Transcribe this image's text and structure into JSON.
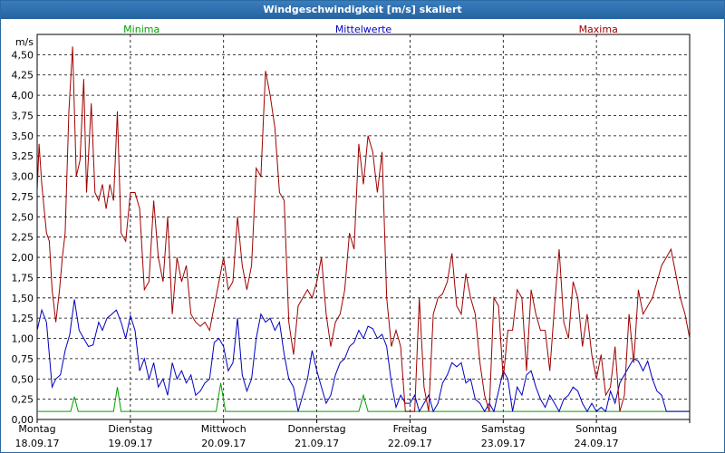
{
  "window": {
    "title": "Windgeschwindigkeit [m/s] skaliert"
  },
  "chart_data": {
    "type": "line",
    "title": "Windgeschwindigkeit [m/s] skaliert",
    "ylabel": "m/s",
    "ylim": [
      0,
      4.75
    ],
    "yticks": [
      "0,00",
      "0,25",
      "0,50",
      "0,75",
      "1,00",
      "1,25",
      "1,50",
      "1,75",
      "2,00",
      "2,25",
      "2,50",
      "2,75",
      "3,00",
      "3,25",
      "3,50",
      "3,75",
      "4,00",
      "4,25",
      "4,50"
    ],
    "day_labels": [
      {
        "day": "Montag",
        "date": "18.09.17"
      },
      {
        "day": "Dienstag",
        "date": "19.09.17"
      },
      {
        "day": "Mittwoch",
        "date": "20.09.17"
      },
      {
        "day": "Donnerstag",
        "date": "21.09.17"
      },
      {
        "day": "Freitag",
        "date": "22.09.17"
      },
      {
        "day": "Samstag",
        "date": "23.09.17"
      },
      {
        "day": "Sonntag",
        "date": "24.09.17"
      }
    ],
    "x_days": 7,
    "grid": true,
    "series": [
      {
        "name": "Minima",
        "color": "#00a000",
        "points": [
          [
            0,
            0.1
          ],
          [
            0.36,
            0.1
          ],
          [
            0.4,
            0.28
          ],
          [
            0.44,
            0.1
          ],
          [
            0.82,
            0.1
          ],
          [
            0.86,
            0.4
          ],
          [
            0.9,
            0.1
          ],
          [
            1.92,
            0.1
          ],
          [
            1.97,
            0.45
          ],
          [
            2.02,
            0.1
          ],
          [
            3.45,
            0.1
          ],
          [
            3.5,
            0.3
          ],
          [
            3.55,
            0.1
          ],
          [
            7,
            0.1
          ]
        ]
      },
      {
        "name": "Mittelwerte",
        "color": "#0000c0",
        "points": [
          [
            0,
            1.1
          ],
          [
            0.05,
            1.35
          ],
          [
            0.1,
            1.2
          ],
          [
            0.16,
            0.4
          ],
          [
            0.2,
            0.5
          ],
          [
            0.25,
            0.55
          ],
          [
            0.3,
            0.85
          ],
          [
            0.35,
            1.05
          ],
          [
            0.4,
            1.48
          ],
          [
            0.45,
            1.1
          ],
          [
            0.5,
            1.0
          ],
          [
            0.55,
            0.9
          ],
          [
            0.6,
            0.92
          ],
          [
            0.66,
            1.2
          ],
          [
            0.7,
            1.1
          ],
          [
            0.75,
            1.25
          ],
          [
            0.8,
            1.3
          ],
          [
            0.85,
            1.35
          ],
          [
            0.9,
            1.2
          ],
          [
            0.95,
            1.0
          ],
          [
            1.0,
            1.28
          ],
          [
            1.05,
            1.1
          ],
          [
            1.1,
            0.6
          ],
          [
            1.15,
            0.75
          ],
          [
            1.2,
            0.5
          ],
          [
            1.25,
            0.7
          ],
          [
            1.3,
            0.4
          ],
          [
            1.35,
            0.5
          ],
          [
            1.4,
            0.3
          ],
          [
            1.45,
            0.7
          ],
          [
            1.5,
            0.5
          ],
          [
            1.55,
            0.6
          ],
          [
            1.6,
            0.45
          ],
          [
            1.65,
            0.55
          ],
          [
            1.7,
            0.3
          ],
          [
            1.75,
            0.35
          ],
          [
            1.8,
            0.45
          ],
          [
            1.85,
            0.5
          ],
          [
            1.9,
            0.95
          ],
          [
            1.95,
            1.0
          ],
          [
            2.0,
            0.9
          ],
          [
            2.05,
            0.6
          ],
          [
            2.1,
            0.7
          ],
          [
            2.15,
            1.25
          ],
          [
            2.2,
            0.55
          ],
          [
            2.25,
            0.35
          ],
          [
            2.3,
            0.5
          ],
          [
            2.35,
            1.0
          ],
          [
            2.4,
            1.3
          ],
          [
            2.45,
            1.2
          ],
          [
            2.5,
            1.25
          ],
          [
            2.55,
            1.1
          ],
          [
            2.6,
            1.2
          ],
          [
            2.65,
            0.8
          ],
          [
            2.7,
            0.5
          ],
          [
            2.75,
            0.4
          ],
          [
            2.8,
            0.1
          ],
          [
            2.85,
            0.3
          ],
          [
            2.9,
            0.5
          ],
          [
            2.95,
            0.85
          ],
          [
            3.0,
            0.6
          ],
          [
            3.05,
            0.4
          ],
          [
            3.1,
            0.2
          ],
          [
            3.15,
            0.3
          ],
          [
            3.2,
            0.55
          ],
          [
            3.25,
            0.7
          ],
          [
            3.3,
            0.75
          ],
          [
            3.35,
            0.9
          ],
          [
            3.4,
            0.95
          ],
          [
            3.45,
            1.1
          ],
          [
            3.5,
            1.0
          ],
          [
            3.55,
            1.15
          ],
          [
            3.6,
            1.12
          ],
          [
            3.65,
            1.0
          ],
          [
            3.7,
            1.05
          ],
          [
            3.75,
            0.9
          ],
          [
            3.8,
            0.45
          ],
          [
            3.85,
            0.15
          ],
          [
            3.9,
            0.3
          ],
          [
            3.95,
            0.2
          ],
          [
            4.0,
            0.2
          ],
          [
            4.05,
            0.3
          ],
          [
            4.1,
            0.1
          ],
          [
            4.15,
            0.2
          ],
          [
            4.2,
            0.3
          ],
          [
            4.25,
            0.1
          ],
          [
            4.3,
            0.2
          ],
          [
            4.35,
            0.45
          ],
          [
            4.4,
            0.55
          ],
          [
            4.45,
            0.7
          ],
          [
            4.5,
            0.65
          ],
          [
            4.55,
            0.7
          ],
          [
            4.6,
            0.45
          ],
          [
            4.65,
            0.5
          ],
          [
            4.7,
            0.25
          ],
          [
            4.75,
            0.2
          ],
          [
            4.8,
            0.1
          ],
          [
            4.85,
            0.2
          ],
          [
            4.9,
            0.1
          ],
          [
            5.0,
            0.6
          ],
          [
            5.05,
            0.5
          ],
          [
            5.1,
            0.1
          ],
          [
            5.15,
            0.4
          ],
          [
            5.2,
            0.3
          ],
          [
            5.25,
            0.55
          ],
          [
            5.3,
            0.6
          ],
          [
            5.35,
            0.4
          ],
          [
            5.4,
            0.25
          ],
          [
            5.45,
            0.15
          ],
          [
            5.5,
            0.3
          ],
          [
            5.55,
            0.2
          ],
          [
            5.6,
            0.1
          ],
          [
            5.65,
            0.25
          ],
          [
            5.7,
            0.3
          ],
          [
            5.75,
            0.4
          ],
          [
            5.8,
            0.35
          ],
          [
            5.85,
            0.2
          ],
          [
            5.9,
            0.1
          ],
          [
            5.95,
            0.2
          ],
          [
            6.0,
            0.1
          ],
          [
            6.05,
            0.15
          ],
          [
            6.1,
            0.1
          ],
          [
            6.15,
            0.35
          ],
          [
            6.2,
            0.2
          ],
          [
            6.25,
            0.45
          ],
          [
            6.3,
            0.55
          ],
          [
            6.35,
            0.65
          ],
          [
            6.4,
            0.75
          ],
          [
            6.45,
            0.72
          ],
          [
            6.5,
            0.6
          ],
          [
            6.55,
            0.72
          ],
          [
            6.6,
            0.5
          ],
          [
            6.65,
            0.35
          ],
          [
            6.7,
            0.3
          ],
          [
            6.75,
            0.1
          ],
          [
            7,
            0.1
          ]
        ]
      },
      {
        "name": "Maxima",
        "color": "#a00000",
        "points": [
          [
            0,
            2.8
          ],
          [
            0.02,
            3.4
          ],
          [
            0.05,
            2.9
          ],
          [
            0.1,
            2.3
          ],
          [
            0.13,
            2.2
          ],
          [
            0.16,
            1.6
          ],
          [
            0.2,
            1.2
          ],
          [
            0.24,
            1.6
          ],
          [
            0.27,
            2.0
          ],
          [
            0.3,
            2.3
          ],
          [
            0.34,
            3.8
          ],
          [
            0.38,
            4.6
          ],
          [
            0.42,
            3.0
          ],
          [
            0.46,
            3.2
          ],
          [
            0.5,
            4.2
          ],
          [
            0.53,
            2.8
          ],
          [
            0.58,
            3.9
          ],
          [
            0.62,
            2.8
          ],
          [
            0.66,
            2.7
          ],
          [
            0.7,
            2.9
          ],
          [
            0.74,
            2.6
          ],
          [
            0.78,
            2.9
          ],
          [
            0.82,
            2.7
          ],
          [
            0.86,
            3.8
          ],
          [
            0.9,
            2.3
          ],
          [
            0.95,
            2.2
          ],
          [
            1.0,
            2.8
          ],
          [
            1.05,
            2.8
          ],
          [
            1.1,
            2.6
          ],
          [
            1.15,
            1.6
          ],
          [
            1.2,
            1.7
          ],
          [
            1.25,
            2.7
          ],
          [
            1.3,
            2.0
          ],
          [
            1.35,
            1.7
          ],
          [
            1.4,
            2.5
          ],
          [
            1.45,
            1.3
          ],
          [
            1.5,
            2.0
          ],
          [
            1.55,
            1.7
          ],
          [
            1.6,
            1.9
          ],
          [
            1.65,
            1.3
          ],
          [
            1.7,
            1.2
          ],
          [
            1.75,
            1.15
          ],
          [
            1.8,
            1.2
          ],
          [
            1.85,
            1.1
          ],
          [
            1.9,
            1.4
          ],
          [
            1.95,
            1.7
          ],
          [
            2.0,
            2.0
          ],
          [
            2.05,
            1.6
          ],
          [
            2.1,
            1.7
          ],
          [
            2.15,
            2.5
          ],
          [
            2.2,
            1.9
          ],
          [
            2.25,
            1.6
          ],
          [
            2.3,
            1.9
          ],
          [
            2.35,
            3.1
          ],
          [
            2.4,
            3.0
          ],
          [
            2.45,
            4.3
          ],
          [
            2.5,
            4.0
          ],
          [
            2.55,
            3.6
          ],
          [
            2.6,
            2.8
          ],
          [
            2.65,
            2.7
          ],
          [
            2.7,
            1.2
          ],
          [
            2.75,
            0.8
          ],
          [
            2.8,
            1.4
          ],
          [
            2.85,
            1.5
          ],
          [
            2.9,
            1.6
          ],
          [
            2.95,
            1.5
          ],
          [
            3.0,
            1.7
          ],
          [
            3.05,
            2.0
          ],
          [
            3.1,
            1.3
          ],
          [
            3.15,
            0.9
          ],
          [
            3.2,
            1.2
          ],
          [
            3.25,
            1.3
          ],
          [
            3.3,
            1.6
          ],
          [
            3.35,
            2.3
          ],
          [
            3.4,
            2.1
          ],
          [
            3.45,
            3.4
          ],
          [
            3.5,
            2.9
          ],
          [
            3.55,
            3.5
          ],
          [
            3.6,
            3.3
          ],
          [
            3.65,
            2.8
          ],
          [
            3.7,
            3.3
          ],
          [
            3.75,
            1.5
          ],
          [
            3.8,
            0.9
          ],
          [
            3.85,
            1.1
          ],
          [
            3.9,
            0.9
          ],
          [
            3.95,
            0.1
          ],
          [
            4.05,
            0.1
          ],
          [
            4.1,
            1.5
          ],
          [
            4.15,
            0.4
          ],
          [
            4.2,
            0.1
          ],
          [
            4.25,
            1.3
          ],
          [
            4.3,
            1.5
          ],
          [
            4.35,
            1.55
          ],
          [
            4.4,
            1.7
          ],
          [
            4.45,
            2.05
          ],
          [
            4.5,
            1.4
          ],
          [
            4.55,
            1.3
          ],
          [
            4.6,
            1.8
          ],
          [
            4.65,
            1.5
          ],
          [
            4.7,
            1.3
          ],
          [
            4.75,
            0.7
          ],
          [
            4.8,
            0.3
          ],
          [
            4.85,
            0.1
          ],
          [
            4.9,
            1.5
          ],
          [
            4.95,
            1.4
          ],
          [
            5.0,
            0.5
          ],
          [
            5.05,
            1.1
          ],
          [
            5.1,
            1.1
          ],
          [
            5.15,
            1.6
          ],
          [
            5.2,
            1.5
          ],
          [
            5.25,
            0.6
          ],
          [
            5.3,
            1.6
          ],
          [
            5.35,
            1.3
          ],
          [
            5.4,
            1.1
          ],
          [
            5.45,
            1.1
          ],
          [
            5.5,
            0.6
          ],
          [
            5.55,
            1.4
          ],
          [
            5.6,
            2.1
          ],
          [
            5.65,
            1.2
          ],
          [
            5.7,
            1.0
          ],
          [
            5.75,
            1.7
          ],
          [
            5.8,
            1.5
          ],
          [
            5.85,
            0.9
          ],
          [
            5.9,
            1.3
          ],
          [
            5.95,
            0.8
          ],
          [
            6.0,
            0.5
          ],
          [
            6.05,
            0.8
          ],
          [
            6.1,
            0.3
          ],
          [
            6.15,
            0.4
          ],
          [
            6.2,
            0.9
          ],
          [
            6.25,
            0.1
          ],
          [
            6.3,
            0.3
          ],
          [
            6.35,
            1.3
          ],
          [
            6.4,
            0.7
          ],
          [
            6.45,
            1.6
          ],
          [
            6.5,
            1.3
          ],
          [
            6.55,
            1.4
          ],
          [
            6.6,
            1.5
          ],
          [
            6.65,
            1.7
          ],
          [
            6.7,
            1.9
          ],
          [
            6.75,
            2.0
          ],
          [
            6.8,
            2.1
          ],
          [
            6.85,
            1.8
          ],
          [
            6.9,
            1.5
          ],
          [
            6.95,
            1.3
          ],
          [
            7.0,
            1.0
          ],
          [
            7.05,
            0.9
          ],
          [
            7.1,
            0.8
          ],
          [
            7.15,
            0.1
          ],
          [
            7.25,
            0.1
          ]
        ]
      }
    ]
  }
}
